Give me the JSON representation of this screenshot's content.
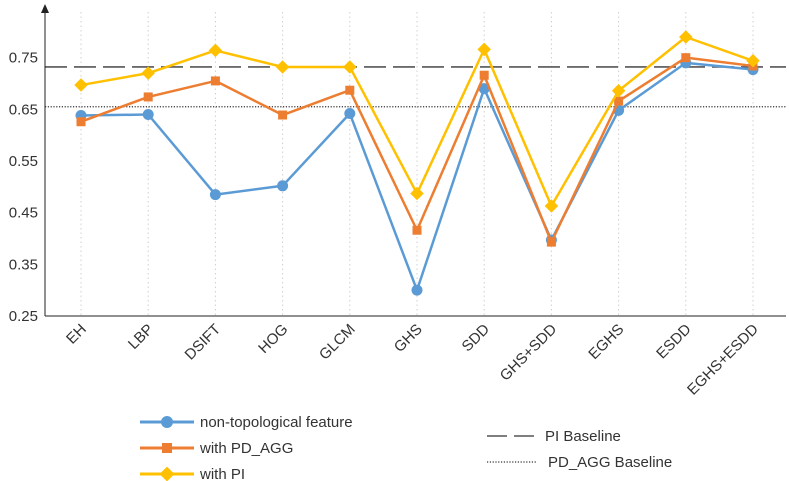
{
  "chart_data": {
    "type": "line",
    "title": "",
    "xlabel": "",
    "ylabel": "",
    "categories": [
      "EH",
      "LBP",
      "DSIFT",
      "HOG",
      "GLCM",
      "GHS",
      "SDD",
      "GHS+SDD",
      "EGHS",
      "ESDD",
      "EGHS+ESDD"
    ],
    "ylim": [
      0.25,
      0.85
    ],
    "yticks": [
      0.25,
      0.35,
      0.45,
      0.55,
      0.65,
      0.75
    ],
    "ytick_labels": [
      "0.25",
      "0.35",
      "0.45",
      "0.55",
      "0.65",
      "0.75"
    ],
    "grid": "vertical-dotted",
    "series": [
      {
        "name": "non-topological feature",
        "color": "#5b9bd5",
        "marker": "circle",
        "values": [
          0.638,
          0.64,
          0.485,
          0.502,
          0.642,
          0.3,
          0.69,
          0.397,
          0.648,
          0.74,
          0.727
        ]
      },
      {
        "name": "with PD_AGG",
        "color": "#ed7d31",
        "marker": "square",
        "values": [
          0.626,
          0.674,
          0.705,
          0.639,
          0.687,
          0.416,
          0.716,
          0.393,
          0.666,
          0.75,
          0.734
        ]
      },
      {
        "name": "with PI",
        "color": "#ffc000",
        "marker": "diamond",
        "values": [
          0.697,
          0.72,
          0.764,
          0.732,
          0.732,
          0.487,
          0.766,
          0.463,
          0.686,
          0.79,
          0.744
        ]
      }
    ],
    "baselines": [
      {
        "name": "PI Baseline",
        "value": 0.732,
        "style": "dashed",
        "color": "#555555"
      },
      {
        "name": "PD_AGG Baseline",
        "value": 0.655,
        "style": "dotted",
        "color": "#333333"
      }
    ],
    "legend_position": "bottom"
  }
}
